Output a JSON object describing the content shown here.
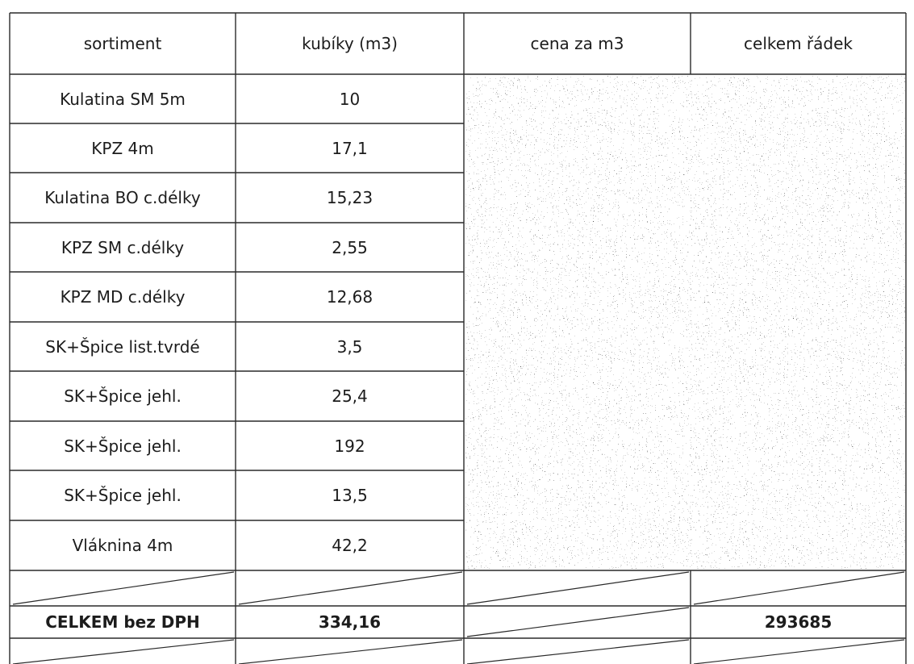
{
  "table": {
    "headers": [
      "sortiment",
      "kubíky (m3)",
      "cena za m3",
      "celkem řádek"
    ],
    "rows": [
      {
        "sortiment": "Kulatina SM 5m",
        "kubiky": "10"
      },
      {
        "sortiment": "KPZ 4m",
        "kubiky": "17,1"
      },
      {
        "sortiment": "Kulatina BO c.délky",
        "kubiky": "15,23"
      },
      {
        "sortiment": "KPZ SM c.délky",
        "kubiky": "2,55"
      },
      {
        "sortiment": "KPZ MD c.délky",
        "kubiky": "12,68"
      },
      {
        "sortiment": "SK+Špice list.tvrdé",
        "kubiky": "3,5"
      },
      {
        "sortiment": "SK+Špice jehl.",
        "kubiky": "25,4"
      },
      {
        "sortiment": "SK+Špice jehl.",
        "kubiky": "192"
      },
      {
        "sortiment": "SK+Špice jehl.",
        "kubiky": "13,5"
      },
      {
        "sortiment": "Vláknina 4m",
        "kubiky": "42,2"
      }
    ],
    "total": {
      "label": "CELKEM bez DPH",
      "kubiky": "334,16",
      "celkem": "293685"
    }
  }
}
